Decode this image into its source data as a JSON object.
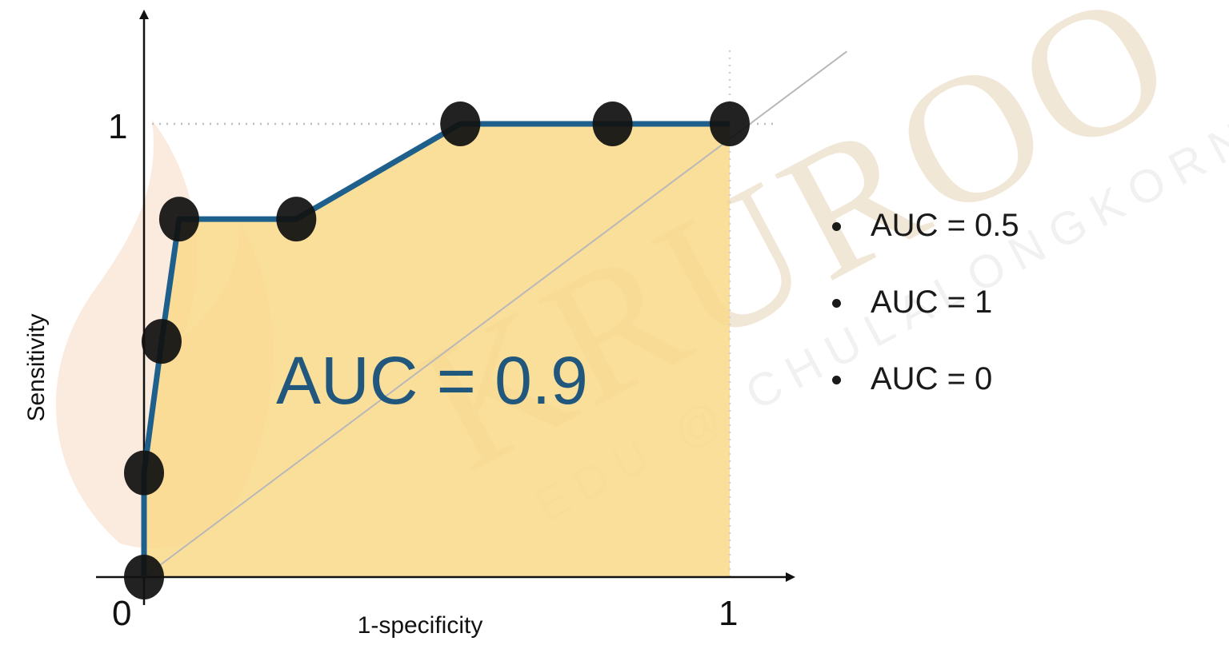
{
  "chart_data": {
    "type": "line",
    "title": "",
    "xlabel": "1-specificity",
    "ylabel": "Sensitivity",
    "xlim": [
      0,
      1
    ],
    "ylim": [
      0,
      1
    ],
    "x_ticks": [
      "0",
      "1"
    ],
    "y_ticks": [
      "1"
    ],
    "series": [
      {
        "x": [
          0,
          0,
          0.03,
          0.06,
          0.26,
          0.54,
          0.8,
          1.0
        ],
        "y": [
          0,
          0.23,
          0.52,
          0.79,
          0.79,
          1.0,
          1.0,
          1.0
        ]
      }
    ],
    "reference_line": {
      "x": [
        0,
        1.2
      ],
      "y": [
        0,
        1.16
      ]
    },
    "area_annotation": "AUC = 0.9",
    "grid": false
  },
  "notes": {
    "bullets": [
      "AUC = 0.5",
      "AUC = 1",
      "AUC = 0"
    ]
  },
  "watermark": {
    "brand": "KRUROO",
    "tagline": "EDU @ CHULALONGKORN"
  },
  "colors": {
    "curve": "#1f5f8b",
    "area": "#f9d98a",
    "points": "#111111",
    "annotation": "#22577d",
    "diagonal": "#b8b8b8",
    "watermark": "#e2c9a5"
  }
}
